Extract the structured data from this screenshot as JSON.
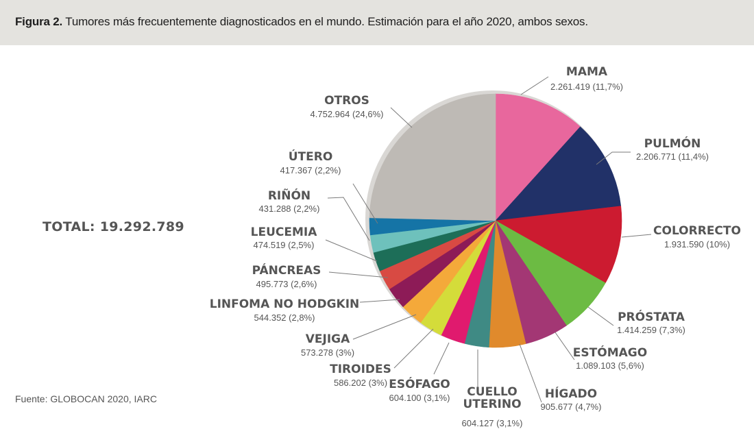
{
  "figure": {
    "label": "Figura 2.",
    "caption": " Tumores más frecuentemente diagnosticados en el mundo. Estimación para el año 2020, ambos sexos."
  },
  "total_text": "TOTAL: 19.292.789",
  "source": "Fuente: GLOBOCAN 2020, IARC",
  "chart_data": {
    "type": "pie",
    "title": "Tumores más frecuentemente diagnosticados en el mundo. Estimación para el año 2020, ambos sexos.",
    "total": 19292789,
    "start_angle_deg": 0,
    "direction": "clockwise",
    "slices": [
      {
        "name": "MAMA",
        "value": 2261419,
        "label": "2.261.419 (11,7%)",
        "color": "#e8679d"
      },
      {
        "name": "PULMÓN",
        "value": 2206771,
        "label": "2.206.771 (11,4%)",
        "color": "#213168"
      },
      {
        "name": "COLORRECTO",
        "value": 1931590,
        "label": "1.931.590 (10%)",
        "color": "#cc1b30"
      },
      {
        "name": "PRÓSTATA",
        "value": 1414259,
        "label": "1.414.259 (7,3%)",
        "color": "#6cbb43"
      },
      {
        "name": "ESTÓMAGO",
        "value": 1089103,
        "label": "1.089.103 (5,6%)",
        "color": "#a33774"
      },
      {
        "name": "HÍGADO",
        "value": 905677,
        "label": "905.677 (4,7%)",
        "color": "#e08a2c"
      },
      {
        "name": "CUELLO UTERINO",
        "value": 604127,
        "label": "604.127 (3,1%)",
        "color": "#3f8a84"
      },
      {
        "name": "ESÓFAGO",
        "value": 604100,
        "label": "604.100 (3,1%)",
        "color": "#e01a6e"
      },
      {
        "name": "TIROIDES",
        "value": 586202,
        "label": "586.202 (3%)",
        "color": "#d4dc3a"
      },
      {
        "name": "VEJIGA",
        "value": 573278,
        "label": "573.278 (3%)",
        "color": "#f4a93a"
      },
      {
        "name": "LINFOMA NO HODGKIN",
        "value": 544352,
        "label": "544.352 (2,8%)",
        "color": "#8d1b57"
      },
      {
        "name": "PÁNCREAS",
        "value": 495773,
        "label": "495.773 (2,6%)",
        "color": "#d84a43"
      },
      {
        "name": "LEUCEMIA",
        "value": 474519,
        "label": "474.519 (2,5%)",
        "color": "#1d6e58"
      },
      {
        "name": "RIÑÓN",
        "value": 431288,
        "label": "431.288 (2,2%)",
        "color": "#6ec1bc"
      },
      {
        "name": "ÚTERO",
        "value": 417367,
        "label": "417.367 (2,2%)",
        "color": "#1574a6"
      },
      {
        "name": "OTROS",
        "value": 4752964,
        "label": "4.752.964 (24,6%)",
        "color": "#bebab5"
      }
    ]
  }
}
